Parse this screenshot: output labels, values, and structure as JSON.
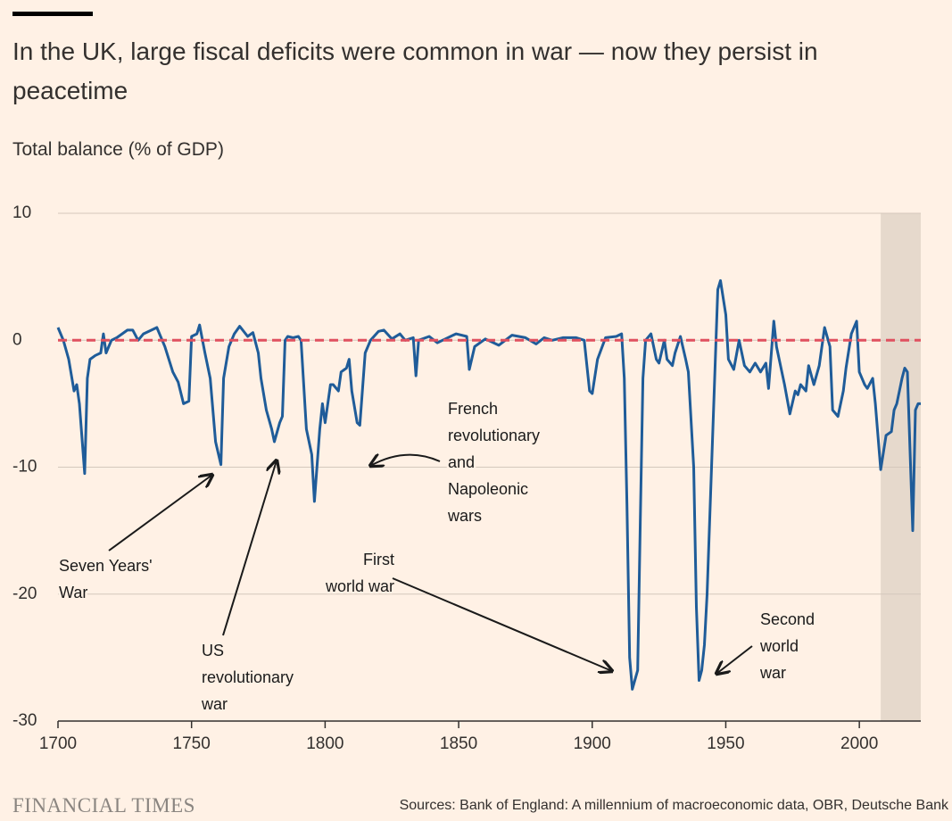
{
  "chart_data": {
    "type": "line",
    "title": "In the UK, large fiscal deficits were common in war — now they persist in peacetime",
    "y_axis_label": "Total balance (% of GDP)",
    "source": "Sources: Bank of England: A millennium of macroeconomic data, OBR, Deutsche Bank",
    "brand": "FINANCIAL TIMES",
    "color": "#1f5c99",
    "zero_line": {
      "value": 0,
      "color": "#e0505f"
    },
    "shade": {
      "from": 2008,
      "to": 2023,
      "color": "#e6d9cc"
    },
    "xlim": [
      1700,
      2023
    ],
    "xticks": [
      1700,
      1750,
      1800,
      1850,
      1900,
      1950,
      2000
    ],
    "ylim": [
      -30,
      10
    ],
    "yticks": [
      10,
      0,
      -10,
      -20,
      -30
    ],
    "grid": true,
    "x": [
      1700,
      1702,
      1704,
      1706,
      1707,
      1708,
      1710,
      1711,
      1712,
      1714,
      1716,
      1717,
      1718,
      1720,
      1722,
      1724,
      1726,
      1728,
      1730,
      1732,
      1735,
      1737,
      1740,
      1743,
      1745,
      1747,
      1749,
      1750,
      1752,
      1753,
      1755,
      1757,
      1759,
      1761,
      1762,
      1764,
      1766,
      1768,
      1771,
      1773,
      1775,
      1776,
      1778,
      1780,
      1781,
      1783,
      1784,
      1785,
      1786,
      1788,
      1790,
      1791,
      1793,
      1795,
      1796,
      1798,
      1799,
      1800,
      1802,
      1803,
      1805,
      1806,
      1808,
      1809,
      1810,
      1812,
      1813,
      1815,
      1817,
      1820,
      1822,
      1825,
      1828,
      1830,
      1833,
      1834,
      1835,
      1839,
      1842,
      1845,
      1849,
      1853,
      1854,
      1856,
      1860,
      1865,
      1870,
      1875,
      1879,
      1882,
      1885,
      1889,
      1894,
      1897,
      1899,
      1900,
      1902,
      1905,
      1909,
      1911,
      1912,
      1913,
      1914,
      1915,
      1917,
      1918,
      1919,
      1920,
      1922,
      1924,
      1925,
      1927,
      1928,
      1930,
      1931,
      1933,
      1935,
      1936,
      1938,
      1939,
      1940,
      1941,
      1942,
      1943,
      1945,
      1946,
      1947,
      1948,
      1950,
      1951,
      1953,
      1955,
      1957,
      1959,
      1961,
      1963,
      1965,
      1966,
      1968,
      1969,
      1972,
      1974,
      1976,
      1977,
      1978,
      1980,
      1981,
      1983,
      1985,
      1987,
      1989,
      1990,
      1992,
      1994,
      1995,
      1997,
      1999,
      2000,
      2002,
      2003,
      2005,
      2006,
      2008,
      2010,
      2012,
      2013,
      2014,
      2016,
      2017,
      2018,
      2020,
      2021,
      2022,
      2023
    ],
    "values": [
      1,
      0,
      -1.5,
      -4,
      -3.5,
      -5,
      -10.5,
      -3,
      -1.5,
      -1.2,
      -1,
      0.5,
      -1,
      0,
      0.2,
      0.5,
      0.8,
      0.8,
      0,
      0.5,
      0.8,
      1,
      -0.5,
      -2.5,
      -3.3,
      -5,
      -4.8,
      0.3,
      0.5,
      1.2,
      -1,
      -3,
      -8,
      -9.8,
      -3,
      -0.5,
      0.5,
      1.1,
      0.3,
      0.6,
      -1,
      -3,
      -5.5,
      -7,
      -8,
      -6.5,
      -6,
      0,
      0.3,
      0.2,
      0.3,
      0,
      -7,
      -9,
      -12.7,
      -7,
      -5,
      -6.5,
      -3.5,
      -3.5,
      -4,
      -2.5,
      -2.2,
      -1.5,
      -4,
      -6.5,
      -6.7,
      -1,
      0,
      0.7,
      0.8,
      0.1,
      0.5,
      0,
      0.2,
      -2.8,
      0,
      0.3,
      -0.2,
      0.1,
      0.5,
      0.3,
      -2.3,
      -0.5,
      0.1,
      -0.4,
      0.4,
      0.2,
      -0.3,
      0.2,
      0,
      0.2,
      0.2,
      0,
      -4,
      -4.2,
      -1.5,
      0.2,
      0.3,
      0.5,
      -3,
      -13,
      -25,
      -27.5,
      -26,
      -14,
      -3,
      0,
      0.5,
      -1.5,
      -1.8,
      0,
      -1.5,
      -2,
      -1,
      0.3,
      -1.5,
      -2.5,
      -10,
      -21,
      -26.8,
      -26,
      -24,
      -20,
      -8,
      -2,
      4,
      4.7,
      2,
      -1.5,
      -2.3,
      0,
      -2,
      -2.5,
      -1.8,
      -2.5,
      -1.8,
      -3.8,
      1.5,
      -0.5,
      -3.5,
      -5.8,
      -4,
      -4.3,
      -3.5,
      -4,
      -2,
      -3.5,
      -2,
      1,
      -0.5,
      -5.5,
      -6,
      -4,
      -2.2,
      0.5,
      1.5,
      -2.5,
      -3.5,
      -3.8,
      -3,
      -5,
      -10.2,
      -7.5,
      -7.2,
      -5.5,
      -5,
      -3,
      -2.2,
      -2.5,
      -15,
      -5.5,
      -5,
      -5
    ],
    "annotations": [
      {
        "lines": [
          "Seven Years'",
          "War"
        ]
      },
      {
        "lines": [
          "US",
          "revolutionary",
          "war"
        ]
      },
      {
        "lines": [
          "French",
          "revolutionary",
          "and",
          "Napoleonic",
          "wars"
        ]
      },
      {
        "lines": [
          "First",
          "world war"
        ]
      },
      {
        "lines": [
          "Second",
          "world",
          "war"
        ]
      }
    ]
  }
}
